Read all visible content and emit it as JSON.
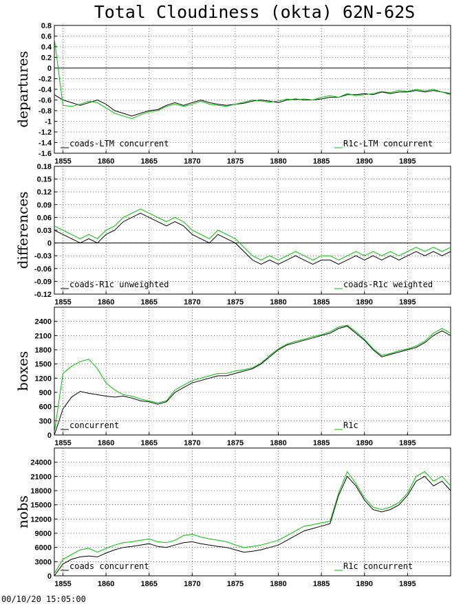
{
  "title": "Total Cloudiness (okta) 62N-62S",
  "timestamp": "00/10/20 15:05:00",
  "colors": {
    "series_a": "#000000",
    "series_b": "#00c000",
    "grid": "#000000"
  },
  "chart_data": [
    {
      "type": "line",
      "ylabel": "departures",
      "xlim": [
        1854,
        1900
      ],
      "ylim": [
        -1.6,
        0.8
      ],
      "yticks": [
        0.8,
        0.6,
        0.4,
        0.2,
        0,
        -0.2,
        -0.4,
        -0.6,
        -0.8,
        -1,
        -1.2,
        -1.4,
        -1.6
      ],
      "xticks": [
        1855,
        1860,
        1865,
        1870,
        1875,
        1880,
        1885,
        1890,
        1895
      ],
      "zero_line": true,
      "grid": true,
      "series": [
        {
          "name": "coads-LTM concurrent",
          "color": "#000000",
          "x": [
            1854,
            1855,
            1856,
            1857,
            1858,
            1859,
            1860,
            1861,
            1862,
            1863,
            1864,
            1865,
            1866,
            1867,
            1868,
            1869,
            1870,
            1871,
            1872,
            1873,
            1874,
            1875,
            1876,
            1877,
            1878,
            1879,
            1880,
            1881,
            1882,
            1883,
            1884,
            1885,
            1886,
            1887,
            1888,
            1889,
            1890,
            1891,
            1892,
            1893,
            1894,
            1895,
            1896,
            1897,
            1898,
            1899,
            1900
          ],
          "y": [
            -0.5,
            -0.6,
            -0.65,
            -0.7,
            -0.65,
            -0.6,
            -0.68,
            -0.8,
            -0.85,
            -0.9,
            -0.85,
            -0.8,
            -0.78,
            -0.7,
            -0.65,
            -0.7,
            -0.65,
            -0.6,
            -0.65,
            -0.68,
            -0.7,
            -0.68,
            -0.66,
            -0.62,
            -0.6,
            -0.62,
            -0.65,
            -0.6,
            -0.58,
            -0.6,
            -0.6,
            -0.58,
            -0.55,
            -0.55,
            -0.5,
            -0.5,
            -0.48,
            -0.5,
            -0.45,
            -0.48,
            -0.45,
            -0.45,
            -0.42,
            -0.45,
            -0.42,
            -0.45,
            -0.48
          ]
        },
        {
          "name": "R1c-LTM concurrent",
          "color": "#00c000",
          "x": [
            1854,
            1855,
            1856,
            1857,
            1858,
            1859,
            1860,
            1861,
            1862,
            1863,
            1864,
            1865,
            1866,
            1867,
            1868,
            1869,
            1870,
            1871,
            1872,
            1873,
            1874,
            1875,
            1876,
            1877,
            1878,
            1879,
            1880,
            1881,
            1882,
            1883,
            1884,
            1885,
            1886,
            1887,
            1888,
            1889,
            1890,
            1891,
            1892,
            1893,
            1894,
            1895,
            1896,
            1897,
            1898,
            1899,
            1900
          ],
          "y": [
            0.55,
            -0.7,
            -0.72,
            -0.68,
            -0.62,
            -0.65,
            -0.75,
            -0.85,
            -0.9,
            -0.95,
            -0.88,
            -0.82,
            -0.8,
            -0.72,
            -0.68,
            -0.72,
            -0.68,
            -0.62,
            -0.68,
            -0.7,
            -0.72,
            -0.68,
            -0.64,
            -0.6,
            -0.62,
            -0.64,
            -0.62,
            -0.58,
            -0.6,
            -0.58,
            -0.6,
            -0.55,
            -0.52,
            -0.55,
            -0.48,
            -0.52,
            -0.5,
            -0.48,
            -0.44,
            -0.46,
            -0.42,
            -0.44,
            -0.4,
            -0.43,
            -0.4,
            -0.45,
            -0.5
          ]
        }
      ]
    },
    {
      "type": "line",
      "ylabel": "differences",
      "xlim": [
        1854,
        1900
      ],
      "ylim": [
        -0.12,
        0.18
      ],
      "yticks": [
        0.18,
        0.15,
        0.12,
        0.09,
        0.06,
        0.03,
        0,
        -0.03,
        -0.06,
        -0.09,
        -0.12
      ],
      "xticks": [
        1855,
        1860,
        1865,
        1870,
        1875,
        1880,
        1885,
        1890,
        1895
      ],
      "zero_line": true,
      "grid": true,
      "series": [
        {
          "name": "coads-R1c unweighted",
          "color": "#000000",
          "x": [
            1854,
            1855,
            1856,
            1857,
            1858,
            1859,
            1860,
            1861,
            1862,
            1863,
            1864,
            1865,
            1866,
            1867,
            1868,
            1869,
            1870,
            1871,
            1872,
            1873,
            1874,
            1875,
            1876,
            1877,
            1878,
            1879,
            1880,
            1881,
            1882,
            1883,
            1884,
            1885,
            1886,
            1887,
            1888,
            1889,
            1890,
            1891,
            1892,
            1893,
            1894,
            1895,
            1896,
            1897,
            1898,
            1899,
            1900
          ],
          "y": [
            0.03,
            0.02,
            0.01,
            0.0,
            0.01,
            0.0,
            0.02,
            0.03,
            0.05,
            0.06,
            0.07,
            0.06,
            0.05,
            0.04,
            0.05,
            0.04,
            0.02,
            0.01,
            0.0,
            0.02,
            0.01,
            0.0,
            -0.02,
            -0.04,
            -0.05,
            -0.04,
            -0.05,
            -0.04,
            -0.03,
            -0.04,
            -0.05,
            -0.04,
            -0.04,
            -0.05,
            -0.04,
            -0.03,
            -0.04,
            -0.03,
            -0.04,
            -0.03,
            -0.04,
            -0.03,
            -0.02,
            -0.03,
            -0.02,
            -0.03,
            -0.02
          ]
        },
        {
          "name": "coads-R1c weighted",
          "color": "#00c000",
          "x": [
            1854,
            1855,
            1856,
            1857,
            1858,
            1859,
            1860,
            1861,
            1862,
            1863,
            1864,
            1865,
            1866,
            1867,
            1868,
            1869,
            1870,
            1871,
            1872,
            1873,
            1874,
            1875,
            1876,
            1877,
            1878,
            1879,
            1880,
            1881,
            1882,
            1883,
            1884,
            1885,
            1886,
            1887,
            1888,
            1889,
            1890,
            1891,
            1892,
            1893,
            1894,
            1895,
            1896,
            1897,
            1898,
            1899,
            1900
          ],
          "y": [
            0.04,
            0.03,
            0.02,
            0.01,
            0.02,
            0.01,
            0.03,
            0.04,
            0.06,
            0.07,
            0.08,
            0.07,
            0.06,
            0.05,
            0.06,
            0.05,
            0.03,
            0.02,
            0.01,
            0.03,
            0.02,
            0.01,
            -0.01,
            -0.03,
            -0.04,
            -0.03,
            -0.04,
            -0.03,
            -0.02,
            -0.03,
            -0.04,
            -0.03,
            -0.03,
            -0.04,
            -0.03,
            -0.02,
            -0.03,
            -0.02,
            -0.03,
            -0.02,
            -0.03,
            -0.02,
            -0.01,
            -0.02,
            -0.01,
            -0.02,
            -0.01
          ]
        }
      ]
    },
    {
      "type": "line",
      "ylabel": "boxes",
      "xlim": [
        1854,
        1900
      ],
      "ylim": [
        0,
        2700
      ],
      "yticks": [
        2400,
        2100,
        1800,
        1500,
        1200,
        900,
        600,
        300,
        0
      ],
      "xticks": [
        1855,
        1860,
        1865,
        1870,
        1875,
        1880,
        1885,
        1890,
        1895
      ],
      "zero_line": false,
      "grid": true,
      "series": [
        {
          "name": "concurrent",
          "color": "#000000",
          "x": [
            1854,
            1855,
            1856,
            1857,
            1858,
            1859,
            1860,
            1861,
            1862,
            1863,
            1864,
            1865,
            1866,
            1867,
            1868,
            1869,
            1870,
            1871,
            1872,
            1873,
            1874,
            1875,
            1876,
            1877,
            1878,
            1879,
            1880,
            1881,
            1882,
            1883,
            1884,
            1885,
            1886,
            1887,
            1888,
            1889,
            1890,
            1891,
            1892,
            1893,
            1894,
            1895,
            1896,
            1897,
            1898,
            1899,
            1900
          ],
          "y": [
            0,
            550,
            800,
            920,
            880,
            850,
            820,
            800,
            820,
            780,
            720,
            700,
            650,
            700,
            900,
            1000,
            1100,
            1150,
            1200,
            1250,
            1250,
            1300,
            1350,
            1400,
            1500,
            1650,
            1800,
            1900,
            1950,
            2000,
            2050,
            2100,
            2150,
            2250,
            2300,
            2150,
            2000,
            1800,
            1650,
            1700,
            1750,
            1800,
            1850,
            1950,
            2100,
            2200,
            2100
          ]
        },
        {
          "name": "R1c",
          "color": "#00c000",
          "x": [
            1854,
            1855,
            1856,
            1857,
            1858,
            1859,
            1860,
            1861,
            1862,
            1863,
            1864,
            1865,
            1866,
            1867,
            1868,
            1869,
            1870,
            1871,
            1872,
            1873,
            1874,
            1875,
            1876,
            1877,
            1878,
            1879,
            1880,
            1881,
            1882,
            1883,
            1884,
            1885,
            1886,
            1887,
            1888,
            1889,
            1890,
            1891,
            1892,
            1893,
            1894,
            1895,
            1896,
            1897,
            1898,
            1899,
            1900
          ],
          "y": [
            50,
            1300,
            1450,
            1550,
            1600,
            1400,
            1100,
            950,
            850,
            820,
            760,
            720,
            680,
            720,
            950,
            1050,
            1150,
            1200,
            1250,
            1300,
            1300,
            1350,
            1380,
            1420,
            1520,
            1680,
            1820,
            1920,
            1980,
            2020,
            2080,
            2120,
            2180,
            2280,
            2320,
            2180,
            2020,
            1820,
            1680,
            1720,
            1780,
            1820,
            1880,
            1980,
            2150,
            2250,
            2150
          ]
        }
      ]
    },
    {
      "type": "line",
      "ylabel": "nobs",
      "xlim": [
        1854,
        1900
      ],
      "ylim": [
        0,
        27000
      ],
      "yticks": [
        24000,
        21000,
        18000,
        15000,
        12000,
        9000,
        6000,
        3000,
        0
      ],
      "xticks": [
        1855,
        1860,
        1865,
        1870,
        1875,
        1880,
        1885,
        1890,
        1895
      ],
      "zero_line": false,
      "grid": true,
      "series": [
        {
          "name": "coads concurrent",
          "color": "#000000",
          "x": [
            1854,
            1855,
            1856,
            1857,
            1858,
            1859,
            1860,
            1861,
            1862,
            1863,
            1864,
            1865,
            1866,
            1867,
            1868,
            1869,
            1870,
            1871,
            1872,
            1873,
            1874,
            1875,
            1876,
            1877,
            1878,
            1879,
            1880,
            1881,
            1882,
            1883,
            1884,
            1885,
            1886,
            1887,
            1888,
            1889,
            1890,
            1891,
            1892,
            1893,
            1894,
            1895,
            1896,
            1897,
            1898,
            1899,
            1900
          ],
          "y": [
            0,
            2500,
            3500,
            4000,
            4200,
            4000,
            4800,
            5500,
            6000,
            6200,
            6500,
            6800,
            6200,
            6000,
            6500,
            7000,
            7200,
            6800,
            6500,
            6200,
            6000,
            5500,
            5000,
            5200,
            5500,
            6000,
            6500,
            7500,
            8500,
            9500,
            10000,
            10500,
            11000,
            17000,
            21000,
            19000,
            16000,
            14000,
            13500,
            14000,
            15000,
            17000,
            20000,
            21000,
            19000,
            20000,
            18000
          ]
        },
        {
          "name": "R1c concurrent",
          "color": "#00c000",
          "x": [
            1854,
            1855,
            1856,
            1857,
            1858,
            1859,
            1860,
            1861,
            1862,
            1863,
            1864,
            1865,
            1866,
            1867,
            1868,
            1869,
            1870,
            1871,
            1872,
            1873,
            1874,
            1875,
            1876,
            1877,
            1878,
            1879,
            1880,
            1881,
            1882,
            1883,
            1884,
            1885,
            1886,
            1887,
            1888,
            1889,
            1890,
            1891,
            1892,
            1893,
            1894,
            1895,
            1896,
            1897,
            1898,
            1899,
            1900
          ],
          "y": [
            500,
            3500,
            4500,
            5500,
            5800,
            5000,
            5800,
            6500,
            7000,
            7200,
            7500,
            7800,
            7200,
            7000,
            7500,
            8500,
            8800,
            8200,
            7800,
            7500,
            7200,
            6500,
            6000,
            6200,
            6500,
            7000,
            7500,
            8500,
            9500,
            10500,
            10800,
            11200,
            11500,
            17500,
            22000,
            19500,
            16500,
            14500,
            14000,
            14500,
            15500,
            17500,
            21000,
            22000,
            20000,
            21000,
            19000
          ]
        }
      ]
    }
  ]
}
